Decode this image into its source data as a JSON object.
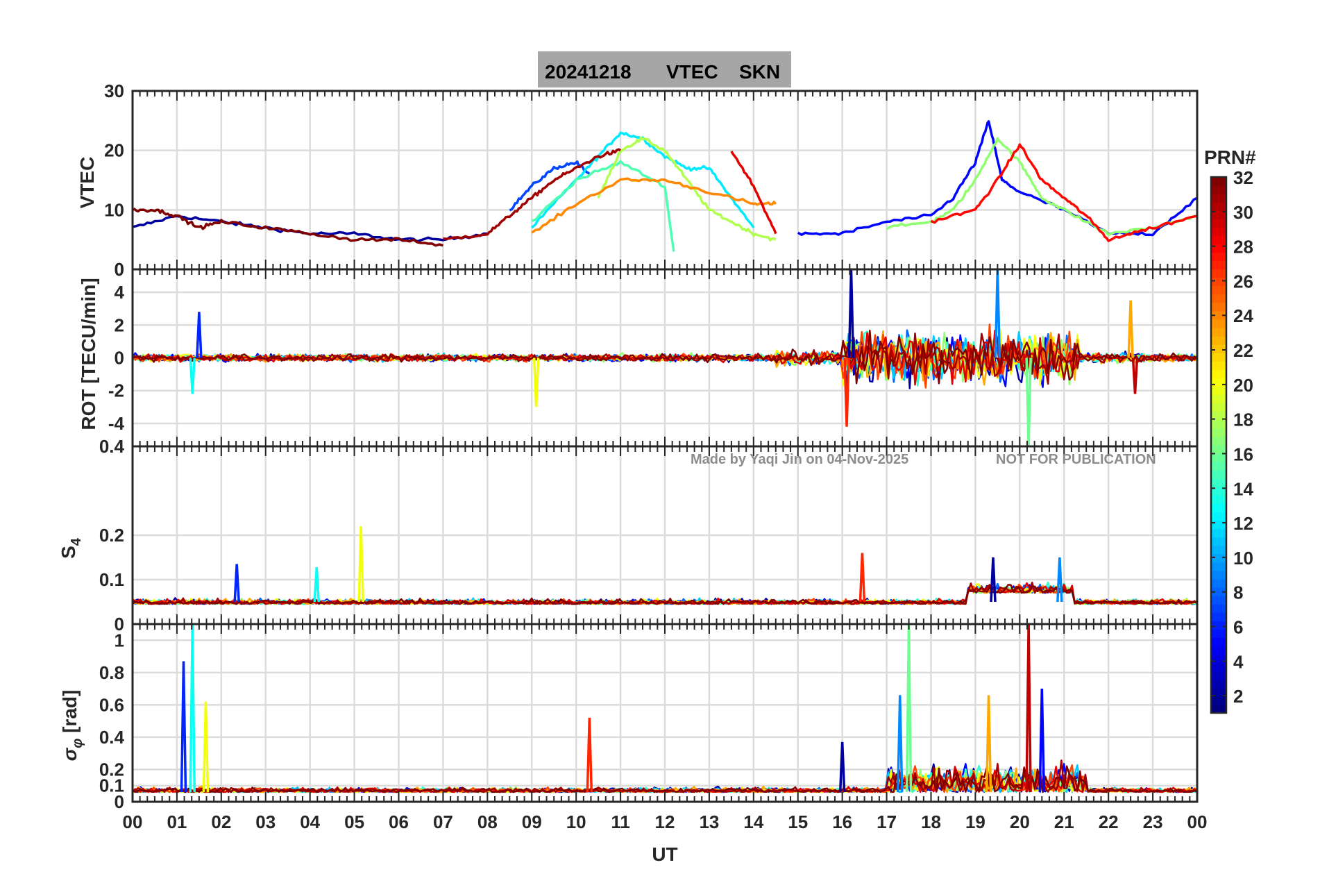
{
  "figure": {
    "title_date": "20241218",
    "title_quantity": "VTEC",
    "title_station": "SKN",
    "title_bg": "#a6a6a6",
    "watermark_author": "Made by Yaqi Jin on 04-Nov-2025",
    "watermark_notice": "NOT FOR PUBLICATION"
  },
  "x_axis": {
    "label": "UT",
    "ticks": [
      "00",
      "01",
      "02",
      "03",
      "04",
      "05",
      "06",
      "07",
      "08",
      "09",
      "10",
      "11",
      "12",
      "13",
      "14",
      "15",
      "16",
      "17",
      "18",
      "19",
      "20",
      "21",
      "22",
      "23",
      "00"
    ]
  },
  "colorbar": {
    "label": "PRN#",
    "range": [
      1,
      32
    ],
    "ticks": [
      "2",
      "4",
      "6",
      "8",
      "10",
      "12",
      "14",
      "16",
      "18",
      "20",
      "22",
      "24",
      "26",
      "28",
      "30",
      "32"
    ]
  },
  "chart_data": [
    {
      "type": "line",
      "panel": "vtec",
      "ylabel": "VTEC",
      "ylim": [
        0,
        30
      ],
      "yticks": [
        "0",
        "10",
        "20",
        "30"
      ],
      "xlim": [
        0,
        24
      ],
      "grid": true,
      "description_series": "per-PRN VTEC traces",
      "series": [
        {
          "name": "PRN 2",
          "x": [
            0,
            1,
            2,
            3,
            4,
            5,
            6,
            7,
            8
          ],
          "values": [
            7,
            9,
            8,
            7,
            6,
            6,
            5,
            5,
            6
          ]
        },
        {
          "name": "PRN 7",
          "x": [
            8.5,
            9,
            9.5,
            10,
            10.3
          ],
          "values": [
            10,
            14,
            17,
            18,
            16
          ]
        },
        {
          "name": "PRN 12",
          "x": [
            9,
            10,
            10.5,
            11,
            11.5,
            12,
            12.5,
            13,
            13.5,
            14
          ],
          "values": [
            7,
            15,
            19,
            23,
            22,
            19,
            17,
            17,
            12,
            7
          ]
        },
        {
          "name": "PRN 15",
          "x": [
            9,
            10,
            11,
            12,
            12.2
          ],
          "values": [
            8,
            15,
            18,
            14,
            3
          ]
        },
        {
          "name": "PRN 18",
          "x": [
            10.5,
            11,
            11.5,
            12,
            12.5,
            13,
            13.5,
            14,
            14.5
          ],
          "values": [
            12,
            20,
            22,
            20,
            15,
            10,
            8,
            6,
            5
          ]
        },
        {
          "name": "PRN 24",
          "x": [
            9,
            10,
            11,
            12,
            13,
            14,
            14.5
          ],
          "values": [
            6,
            11,
            15,
            15,
            13,
            11,
            11
          ]
        },
        {
          "name": "PRN 29",
          "x": [
            13.5,
            14,
            14.5
          ],
          "values": [
            20,
            14,
            6
          ]
        },
        {
          "name": "PRN 31",
          "x": [
            7,
            8,
            8.5,
            9,
            9.5,
            10,
            10.5,
            11
          ],
          "values": [
            5,
            6,
            9,
            12,
            15,
            17,
            19,
            20
          ]
        },
        {
          "name": "PRN 5",
          "x": [
            15,
            16,
            17,
            18,
            18.5,
            19,
            19.3,
            19.6,
            20,
            21,
            22,
            23,
            24
          ],
          "values": [
            6,
            6,
            8,
            9,
            12,
            18,
            25,
            15,
            13,
            10,
            6,
            6,
            12
          ]
        },
        {
          "name": "PRN 17",
          "x": [
            17,
            18,
            18.5,
            19,
            19.5,
            20,
            20.5,
            21,
            22,
            23,
            24
          ],
          "values": [
            7,
            8,
            10,
            15,
            22,
            18,
            12,
            10,
            6,
            7,
            9
          ]
        },
        {
          "name": "PRN 28",
          "x": [
            18,
            19,
            19.5,
            20,
            20.5,
            21,
            21.5,
            22,
            23,
            24
          ],
          "values": [
            8,
            10,
            15,
            21,
            15,
            12,
            9,
            5,
            7,
            9
          ]
        },
        {
          "name": "PRN 32",
          "x": [
            0,
            0.5,
            1,
            1.5,
            2,
            3,
            4,
            5,
            6,
            7
          ],
          "values": [
            10,
            10,
            9,
            7,
            8,
            7,
            6,
            5,
            5,
            4
          ]
        }
      ]
    },
    {
      "type": "line",
      "panel": "rot",
      "ylabel": "ROT [TECU/min]",
      "ylim": [
        -5.4,
        5.4
      ],
      "yticks": [
        "-4",
        "-2",
        "0",
        "2",
        "4"
      ],
      "top_tick_label": "0",
      "xlim": [
        0,
        24
      ],
      "grid": true,
      "notable_peaks": [
        {
          "x": 1.5,
          "value": 2.8
        },
        {
          "x": 1.35,
          "value": -2.2
        },
        {
          "x": 9.1,
          "value": -3.0
        },
        {
          "x": 16.1,
          "value": -4.2
        },
        {
          "x": 16.2,
          "value": 5.4
        },
        {
          "x": 19.5,
          "value": 5.4
        },
        {
          "x": 20.2,
          "value": -5.4
        },
        {
          "x": 22.5,
          "value": 3.5
        },
        {
          "x": 22.6,
          "value": -2.2
        }
      ]
    },
    {
      "type": "line",
      "panel": "s4",
      "ylabel": "S4",
      "ylim": [
        0,
        0.4
      ],
      "yticks": [
        "0",
        "0.1",
        "0.2"
      ],
      "top_tick_label": "0.4",
      "xlim": [
        0,
        24
      ],
      "grid": true,
      "baseline": 0.05,
      "notable_peaks": [
        {
          "x": 2.35,
          "value": 0.135
        },
        {
          "x": 4.15,
          "value": 0.128
        },
        {
          "x": 5.15,
          "value": 0.22
        },
        {
          "x": 16.45,
          "value": 0.16
        },
        {
          "x": 19.4,
          "value": 0.15
        },
        {
          "x": 20.9,
          "value": 0.15
        }
      ]
    },
    {
      "type": "line",
      "panel": "sigma_phi",
      "ylabel": "σφ [rad]",
      "ylim": [
        0,
        1.1
      ],
      "yticks": [
        "0",
        "0.1",
        "0.2",
        "0.4",
        "0.6",
        "0.8",
        "1"
      ],
      "xlim": [
        0,
        24
      ],
      "grid": true,
      "notable_peaks": [
        {
          "x": 1.15,
          "value": 0.87
        },
        {
          "x": 1.35,
          "value": 1.1
        },
        {
          "x": 1.65,
          "value": 0.62
        },
        {
          "x": 10.3,
          "value": 0.52
        },
        {
          "x": 16.0,
          "value": 0.37
        },
        {
          "x": 17.3,
          "value": 0.66
        },
        {
          "x": 17.5,
          "value": 1.1
        },
        {
          "x": 19.3,
          "value": 0.66
        },
        {
          "x": 20.2,
          "value": 1.1
        },
        {
          "x": 20.5,
          "value": 0.7
        }
      ]
    }
  ]
}
